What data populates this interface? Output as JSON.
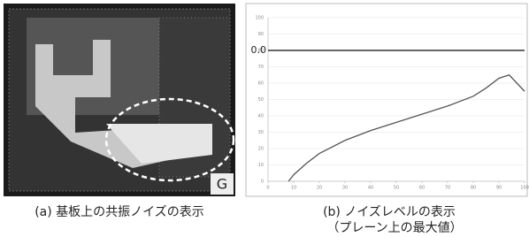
{
  "panel_a": {
    "corner_label": "G",
    "caption": "(a) 基板上の共振ノイズの表示"
  },
  "panel_b": {
    "caption": [
      "(b) ノイズレベルの表示",
      "（プレーン上の最大値）"
    ]
  },
  "chart_data": {
    "type": "line",
    "x": [
      8,
      10,
      15,
      20,
      30,
      40,
      50,
      60,
      70,
      80,
      85,
      90,
      94,
      97,
      100
    ],
    "series": [
      {
        "color": "#555555",
        "values": [
          0,
          4,
          11,
          17,
          25,
          31,
          36,
          41,
          46,
          52,
          57,
          63,
          65,
          60,
          55
        ]
      }
    ],
    "xlim": [
      0,
      100
    ],
    "xticks": [
      0,
      10,
      20,
      30,
      40,
      50,
      60,
      70,
      80,
      90,
      100
    ],
    "ylim": [
      0,
      100
    ],
    "yticks": [
      0,
      10,
      20,
      30,
      40,
      50,
      60,
      70,
      80,
      90,
      100
    ],
    "grid": true,
    "reference_line": {
      "label": "0.0",
      "y": 80
    }
  }
}
